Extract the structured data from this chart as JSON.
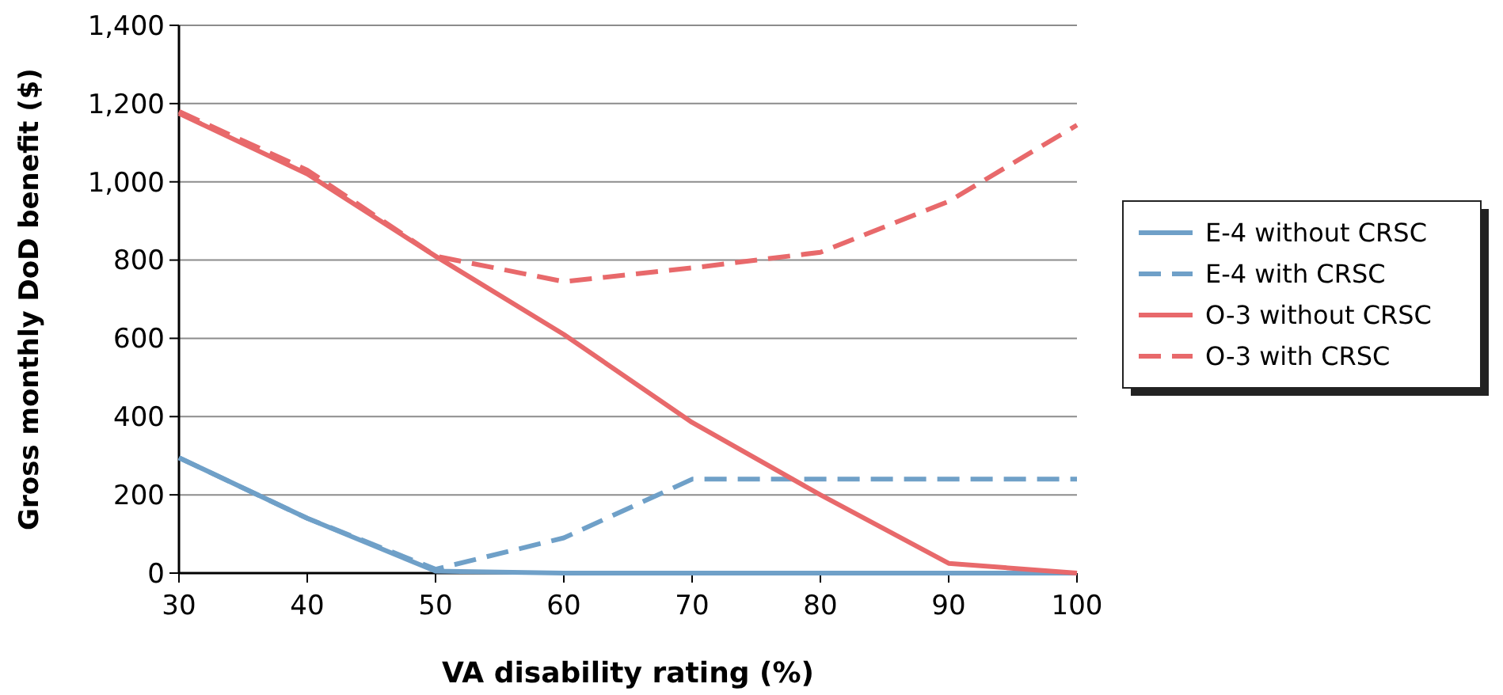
{
  "chart_data": {
    "type": "line",
    "xlabel": "VA disability rating (%)",
    "ylabel": "Gross monthly DoD benefit ($)",
    "x": [
      30,
      40,
      50,
      60,
      70,
      80,
      90,
      100
    ],
    "xlim": [
      30,
      100
    ],
    "xticks": [
      30,
      40,
      50,
      60,
      70,
      80,
      90,
      100
    ],
    "ylim": [
      0,
      1400
    ],
    "yticks": [
      0,
      200,
      400,
      600,
      800,
      {
        "value": 1000,
        "label": "1,000"
      },
      {
        "value": 1200,
        "label": "1,200"
      },
      {
        "value": 1400,
        "label": "1,400"
      }
    ],
    "grid": "y",
    "legend": "right",
    "marker": "none",
    "series": [
      {
        "name": "E-4 without CRSC",
        "color": "#6fa0c8",
        "line_style": "solid",
        "values": [
          295,
          140,
          5,
          0,
          0,
          0,
          0,
          0
        ]
      },
      {
        "name": "E-4 with CRSC",
        "color": "#6fa0c8",
        "line_style": "dashed",
        "values": [
          295,
          140,
          10,
          90,
          240,
          240,
          240,
          240
        ]
      },
      {
        "name": "O-3 without CRSC",
        "color": "#e8696b",
        "line_style": "solid",
        "values": [
          1175,
          1020,
          810,
          610,
          385,
          200,
          25,
          0
        ]
      },
      {
        "name": "O-3 with CRSC",
        "color": "#e8696b",
        "line_style": "dashed",
        "values": [
          1180,
          1030,
          810,
          745,
          780,
          820,
          950,
          1145
        ]
      }
    ]
  }
}
